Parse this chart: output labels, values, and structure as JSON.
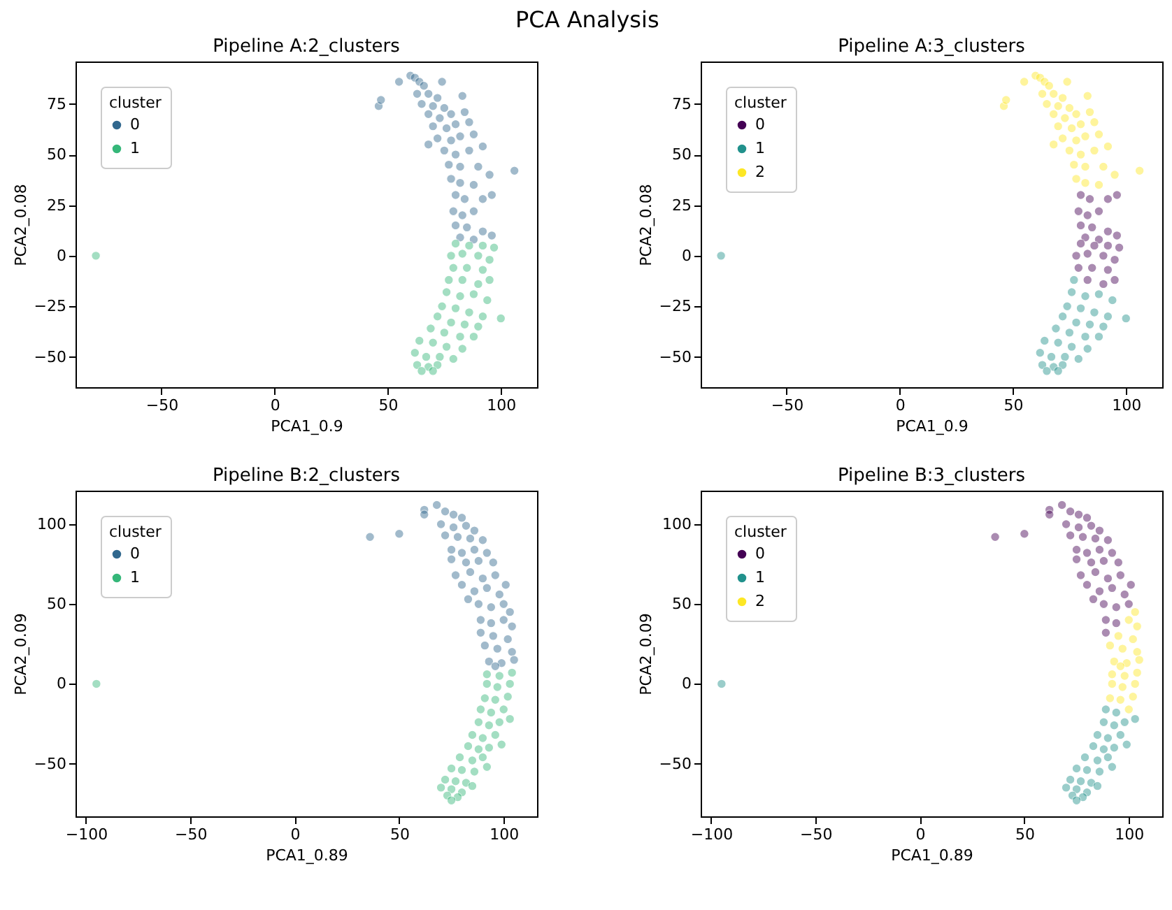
{
  "chart_data": [
    {
      "type": "scatter",
      "title": "Pipeline A:2_clusters",
      "annotations": [
        "PCA Analysis"
      ],
      "xlabel": "PCA1_0.9",
      "ylabel": "PCA2_0.08",
      "legend_title": "cluster",
      "legend": "top left",
      "marker": "circle",
      "xlim": [
        -88,
        116
      ],
      "ylim": [
        -65,
        96
      ],
      "xticks": [
        -50,
        0,
        50,
        100
      ],
      "yticks": [
        -50,
        -25,
        0,
        25,
        50,
        75
      ],
      "series": [
        {
          "name": "0",
          "color": "#31688e",
          "x": [
            46,
            47,
            60,
            62,
            55,
            64,
            74,
            66,
            63,
            68,
            72,
            83,
            65,
            70,
            75,
            68,
            73,
            78,
            84,
            70,
            76,
            80,
            86,
            72,
            78,
            82,
            88,
            68,
            75,
            80,
            86,
            92,
            106,
            77,
            82,
            90,
            95,
            78,
            82,
            88,
            80,
            84,
            92,
            96,
            79,
            83,
            88,
            80,
            85,
            92,
            96,
            82,
            88
          ],
          "values": [
            74,
            77,
            89,
            88,
            86,
            86,
            86,
            84,
            80,
            80,
            78,
            79,
            75,
            74,
            73,
            70,
            68,
            70,
            71,
            64,
            63,
            65,
            66,
            58,
            57,
            59,
            60,
            55,
            52,
            50,
            52,
            54,
            42,
            45,
            44,
            44,
            40,
            38,
            36,
            35,
            30,
            28,
            28,
            30,
            22,
            20,
            22,
            15,
            14,
            12,
            10,
            9,
            8
          ]
        },
        {
          "name": "1",
          "color": "#35b779",
          "x": [
            -79,
            80,
            86,
            92,
            97,
            78,
            83,
            90,
            95,
            79,
            85,
            92,
            77,
            83,
            90,
            95,
            76,
            82,
            88,
            94,
            74,
            80,
            86,
            92,
            100,
            72,
            78,
            84,
            90,
            69,
            75,
            82,
            88,
            64,
            70,
            76,
            83,
            62,
            67,
            73,
            79,
            63,
            68,
            72,
            65,
            70
          ],
          "values": [
            0,
            6,
            5,
            5,
            4,
            0,
            1,
            0,
            -2,
            -6,
            -6,
            -7,
            -12,
            -12,
            -14,
            -12,
            -18,
            -20,
            -19,
            -22,
            -25,
            -26,
            -28,
            -30,
            -31,
            -30,
            -33,
            -34,
            -35,
            -36,
            -38,
            -40,
            -40,
            -42,
            -43,
            -45,
            -46,
            -48,
            -50,
            -50,
            -51,
            -54,
            -55,
            -54,
            -57,
            -57
          ]
        }
      ]
    },
    {
      "type": "scatter",
      "title": "Pipeline A:3_clusters",
      "xlabel": "PCA1_0.9",
      "ylabel": "PCA2_0.08",
      "legend_title": "cluster",
      "legend": "top left",
      "marker": "circle",
      "xlim": [
        -88,
        116
      ],
      "ylim": [
        -65,
        96
      ],
      "xticks": [
        -50,
        0,
        50,
        100
      ],
      "yticks": [
        -50,
        -25,
        0,
        25,
        50,
        75
      ],
      "series": [
        {
          "name": "0",
          "color": "#440154",
          "x": [
            80,
            84,
            92,
            96,
            79,
            83,
            88,
            80,
            85,
            92,
            96,
            82,
            88,
            80,
            86,
            92,
            97,
            78,
            83,
            90,
            95,
            79,
            85,
            92,
            83,
            90,
            95
          ],
          "values": [
            30,
            28,
            28,
            30,
            22,
            20,
            22,
            15,
            14,
            12,
            10,
            9,
            8,
            6,
            5,
            5,
            4,
            0,
            1,
            0,
            -2,
            -6,
            -6,
            -7,
            -12,
            -14,
            -12
          ]
        },
        {
          "name": "1",
          "color": "#21918c",
          "x": [
            -79,
            77,
            76,
            82,
            88,
            94,
            74,
            80,
            86,
            92,
            100,
            72,
            78,
            84,
            90,
            69,
            75,
            82,
            88,
            64,
            70,
            76,
            83,
            62,
            67,
            73,
            79,
            63,
            68,
            72,
            65,
            70
          ],
          "values": [
            0,
            -12,
            -18,
            -20,
            -19,
            -22,
            -25,
            -26,
            -28,
            -30,
            -31,
            -30,
            -33,
            -34,
            -35,
            -36,
            -38,
            -40,
            -40,
            -42,
            -43,
            -45,
            -46,
            -48,
            -50,
            -50,
            -51,
            -54,
            -55,
            -54,
            -57,
            -57
          ]
        },
        {
          "name": "2",
          "color": "#fde725",
          "x": [
            46,
            47,
            60,
            62,
            55,
            64,
            74,
            66,
            63,
            68,
            72,
            83,
            65,
            70,
            75,
            68,
            73,
            78,
            84,
            70,
            76,
            80,
            86,
            72,
            78,
            82,
            88,
            68,
            75,
            80,
            86,
            92,
            106,
            77,
            82,
            90,
            95,
            78,
            82,
            88
          ],
          "values": [
            74,
            77,
            89,
            88,
            86,
            86,
            86,
            84,
            80,
            80,
            78,
            79,
            75,
            74,
            73,
            70,
            68,
            70,
            71,
            64,
            63,
            65,
            66,
            58,
            57,
            59,
            60,
            55,
            52,
            50,
            52,
            54,
            42,
            45,
            44,
            44,
            40,
            38,
            36,
            35
          ]
        }
      ]
    },
    {
      "type": "scatter",
      "title": "Pipeline B:2_clusters",
      "xlabel": "PCA1_0.89",
      "ylabel": "PCA2_0.09",
      "legend_title": "cluster",
      "legend": "top left",
      "marker": "circle",
      "xlim": [
        -105,
        116
      ],
      "ylim": [
        -83,
        121
      ],
      "xticks": [
        -100,
        -50,
        0,
        50,
        100
      ],
      "yticks": [
        -50,
        0,
        50,
        100
      ],
      "series": [
        {
          "name": "0",
          "color": "#31688e",
          "x": [
            36,
            50,
            68,
            62,
            62,
            72,
            76,
            80,
            70,
            76,
            82,
            86,
            72,
            78,
            84,
            90,
            75,
            80,
            86,
            92,
            75,
            82,
            88,
            95,
            77,
            84,
            90,
            96,
            101,
            80,
            86,
            92,
            98,
            83,
            88,
            94,
            100,
            103,
            89,
            94,
            100,
            104,
            89,
            95,
            102,
            91,
            97,
            104,
            93,
            99,
            105,
            96
          ],
          "values": [
            92,
            94,
            112,
            109,
            106,
            108,
            106,
            104,
            100,
            98,
            99,
            96,
            93,
            92,
            91,
            90,
            84,
            82,
            84,
            82,
            78,
            76,
            77,
            76,
            68,
            70,
            66,
            68,
            62,
            62,
            58,
            60,
            56,
            53,
            50,
            48,
            50,
            45,
            40,
            38,
            40,
            36,
            32,
            30,
            28,
            24,
            22,
            20,
            14,
            13,
            15,
            11
          ]
        },
        {
          "name": "1",
          "color": "#35b779",
          "x": [
            -95,
            92,
            98,
            104,
            92,
            97,
            103,
            91,
            96,
            102,
            89,
            94,
            100,
            88,
            93,
            98,
            103,
            85,
            90,
            96,
            83,
            88,
            93,
            99,
            79,
            85,
            90,
            75,
            80,
            86,
            92,
            72,
            77,
            82,
            70,
            75,
            80,
            85,
            73,
            78,
            75
          ],
          "values": [
            0,
            6,
            5,
            7,
            0,
            -2,
            0,
            -9,
            -10,
            -8,
            -16,
            -18,
            -16,
            -24,
            -26,
            -24,
            -22,
            -32,
            -34,
            -32,
            -39,
            -41,
            -40,
            -38,
            -46,
            -48,
            -46,
            -53,
            -54,
            -55,
            -52,
            -60,
            -61,
            -62,
            -65,
            -66,
            -68,
            -64,
            -70,
            -71,
            -73
          ]
        }
      ]
    },
    {
      "type": "scatter",
      "title": "Pipeline B:3_clusters",
      "xlabel": "PCA1_0.89",
      "ylabel": "PCA2_0.09",
      "legend_title": "cluster",
      "legend": "top left",
      "marker": "circle",
      "xlim": [
        -105,
        116
      ],
      "ylim": [
        -83,
        121
      ],
      "xticks": [
        -100,
        -50,
        0,
        50,
        100
      ],
      "yticks": [
        -50,
        0,
        50,
        100
      ],
      "series": [
        {
          "name": "0",
          "color": "#440154",
          "x": [
            36,
            50,
            68,
            62,
            62,
            72,
            76,
            80,
            70,
            76,
            82,
            86,
            72,
            78,
            84,
            90,
            75,
            80,
            86,
            92,
            75,
            82,
            88,
            95,
            77,
            84,
            90,
            96,
            101,
            80,
            86,
            92,
            98,
            83,
            88,
            94,
            100,
            89,
            94,
            89
          ],
          "values": [
            92,
            94,
            112,
            109,
            106,
            108,
            106,
            104,
            100,
            98,
            99,
            96,
            93,
            92,
            91,
            90,
            84,
            82,
            84,
            82,
            78,
            76,
            77,
            76,
            68,
            70,
            66,
            68,
            62,
            62,
            58,
            60,
            56,
            53,
            50,
            48,
            50,
            40,
            38,
            32
          ]
        },
        {
          "name": "1",
          "color": "#21918c",
          "x": [
            -95,
            89,
            94,
            88,
            93,
            98,
            103,
            85,
            90,
            96,
            83,
            88,
            93,
            99,
            79,
            85,
            90,
            75,
            80,
            86,
            92,
            72,
            77,
            82,
            70,
            75,
            80,
            85,
            73,
            78,
            75
          ],
          "values": [
            0,
            -16,
            -18,
            -24,
            -26,
            -24,
            -22,
            -32,
            -34,
            -32,
            -39,
            -41,
            -40,
            -38,
            -46,
            -48,
            -46,
            -53,
            -54,
            -55,
            -52,
            -60,
            -61,
            -62,
            -65,
            -66,
            -68,
            -64,
            -70,
            -71,
            -73
          ]
        },
        {
          "name": "2",
          "color": "#fde725",
          "x": [
            103,
            100,
            104,
            95,
            102,
            91,
            97,
            104,
            93,
            99,
            105,
            96,
            92,
            98,
            104,
            92,
            97,
            103,
            91,
            96,
            102,
            100
          ],
          "values": [
            45,
            40,
            36,
            30,
            28,
            24,
            22,
            20,
            14,
            13,
            15,
            11,
            6,
            5,
            7,
            0,
            -2,
            0,
            -9,
            -10,
            -8,
            -16
          ]
        }
      ]
    }
  ]
}
